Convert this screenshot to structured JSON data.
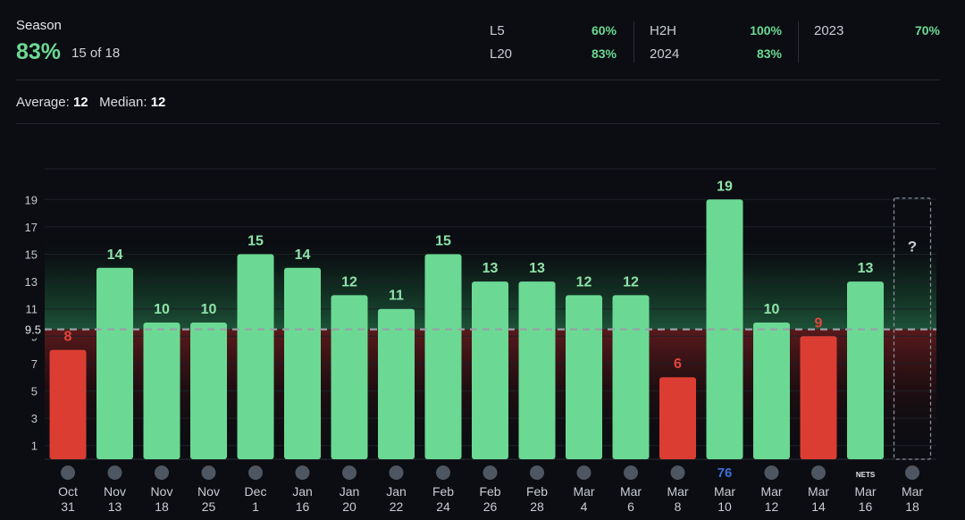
{
  "summary": {
    "season_label": "Season",
    "season_pct": "83%",
    "season_count": "15 of 18",
    "stats": [
      {
        "label": "L5",
        "value": "60%"
      },
      {
        "label": "L20",
        "value": "83%"
      },
      {
        "label": "H2H",
        "value": "100%"
      },
      {
        "label": "2024",
        "value": "83%"
      },
      {
        "label": "2023",
        "value": "70%"
      }
    ],
    "average_label": "Average:",
    "average_value": "12",
    "median_label": "Median:",
    "median_value": "12"
  },
  "colors": {
    "hit": "#6bd993",
    "miss": "#dc3d33",
    "hit_label": "#8fe3a9",
    "miss_label": "#e2463b"
  },
  "chart_data": {
    "type": "bar",
    "title": "",
    "xlabel": "",
    "ylabel": "",
    "line": 9.5,
    "line_label": "9.5",
    "ylim": [
      0,
      20
    ],
    "yticks": [
      1,
      3,
      5,
      7,
      9,
      11,
      13,
      15,
      17,
      19
    ],
    "categories": [
      {
        "month": "Oct",
        "day": "31",
        "team": "suns",
        "value": 8
      },
      {
        "month": "Nov",
        "day": "13",
        "team": "rockets",
        "value": 14
      },
      {
        "month": "Nov",
        "day": "18",
        "team": "warriors",
        "value": 10
      },
      {
        "month": "Nov",
        "day": "25",
        "team": "celtics",
        "value": 10
      },
      {
        "month": "Dec",
        "day": "1",
        "team": "nuggets",
        "value": 15
      },
      {
        "month": "Jan",
        "day": "16",
        "team": "blazers",
        "value": 14
      },
      {
        "month": "Jan",
        "day": "20",
        "team": "bulls",
        "value": 12
      },
      {
        "month": "Jan",
        "day": "22",
        "team": "celtics",
        "value": 11
      },
      {
        "month": "Feb",
        "day": "24",
        "team": "heat",
        "value": 15
      },
      {
        "month": "Feb",
        "day": "26",
        "team": "heat",
        "value": 13
      },
      {
        "month": "Feb",
        "day": "28",
        "team": "thunder",
        "value": 13
      },
      {
        "month": "Mar",
        "day": "4",
        "team": "bucks",
        "value": 12
      },
      {
        "month": "Mar",
        "day": "6",
        "team": "pacers",
        "value": 12
      },
      {
        "month": "Mar",
        "day": "8",
        "team": "pacers",
        "value": 6
      },
      {
        "month": "Mar",
        "day": "10",
        "team": "76ers",
        "value": 19
      },
      {
        "month": "Mar",
        "day": "12",
        "team": "hornets",
        "value": 10
      },
      {
        "month": "Mar",
        "day": "14",
        "team": "clippers",
        "value": 9
      },
      {
        "month": "Mar",
        "day": "16",
        "team": "nets",
        "value": 13
      },
      {
        "month": "Mar",
        "day": "18",
        "team": "hornets",
        "value": null,
        "pending_label": "?"
      }
    ],
    "team_glyphs": {
      "76ers": "76",
      "nets": "NETS"
    }
  }
}
